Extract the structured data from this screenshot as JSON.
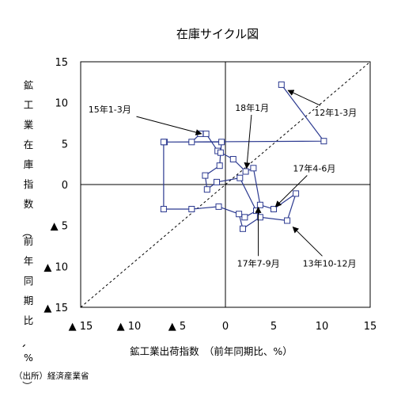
{
  "chart_data": {
    "type": "scatter",
    "title": "在庫サイクル図",
    "xlabel": "鉱工業出荷指数　（前年同期比、%）",
    "ylabel": "鉱工業在庫指数（前年同期比、%）",
    "xlim": [
      -15,
      15
    ],
    "ylim": [
      -15,
      15
    ],
    "x_ticks": [
      {
        "value": -15,
        "label": "▲ 15"
      },
      {
        "value": -10,
        "label": "▲ 10"
      },
      {
        "value": -5,
        "label": "▲ 5"
      },
      {
        "value": 0,
        "label": "0"
      },
      {
        "value": 5,
        "label": "5"
      },
      {
        "value": 10,
        "label": "10"
      },
      {
        "value": 15,
        "label": "15"
      }
    ],
    "y_ticks": [
      {
        "value": 15,
        "label": "15"
      },
      {
        "value": 10,
        "label": "10"
      },
      {
        "value": 5,
        "label": "5"
      },
      {
        "value": 0,
        "label": "0"
      },
      {
        "value": -5,
        "label": "▲ 5"
      },
      {
        "value": -10,
        "label": "▲ 10"
      },
      {
        "value": -15,
        "label": "▲ 15"
      }
    ],
    "grid": false,
    "diagonal": "45-degree dashed reference line",
    "series": [
      {
        "marker": "hollow-square",
        "color": "#2b3990",
        "points": [
          {
            "x": 5.8,
            "y": 12.2
          },
          {
            "x": 10.2,
            "y": 5.3
          },
          {
            "x": -6.3,
            "y": 5.2
          },
          {
            "x": -3.5,
            "y": 5.2
          },
          {
            "x": -2.6,
            "y": 6.2
          },
          {
            "x": -2.0,
            "y": 6.2
          },
          {
            "x": -0.8,
            "y": 4.1
          },
          {
            "x": 0.8,
            "y": 3.1
          },
          {
            "x": 2.1,
            "y": 1.6
          },
          {
            "x": 2.9,
            "y": 2.0
          },
          {
            "x": 3.6,
            "y": -2.5
          },
          {
            "x": 5.0,
            "y": -3.0
          },
          {
            "x": 7.3,
            "y": -1.1
          },
          {
            "x": 6.4,
            "y": -4.4
          },
          {
            "x": 3.6,
            "y": -4.0
          },
          {
            "x": 1.8,
            "y": -5.4
          },
          {
            "x": 1.4,
            "y": -3.6
          },
          {
            "x": -0.7,
            "y": -2.7
          },
          {
            "x": -3.5,
            "y": -3.0
          },
          {
            "x": -6.4,
            "y": -3.0
          },
          {
            "x": -6.4,
            "y": 5.2
          },
          {
            "x": -0.4,
            "y": 5.2
          },
          {
            "x": -0.5,
            "y": 3.9
          },
          {
            "x": -0.6,
            "y": 2.3
          },
          {
            "x": -2.1,
            "y": 1.1
          },
          {
            "x": -1.9,
            "y": -0.6
          },
          {
            "x": -0.9,
            "y": 0.3
          },
          {
            "x": 1.5,
            "y": 0.8
          },
          {
            "x": 3.2,
            "y": -3.2
          },
          {
            "x": 2.0,
            "y": -4.0
          }
        ]
      }
    ],
    "annotations": [
      {
        "text": "12年1-3月",
        "x": 9.2,
        "y": 8.4,
        "target": {
          "x": 6.5,
          "y": 11.5
        }
      },
      {
        "text": "15年1-3月",
        "x": -14.2,
        "y": 8.8,
        "target": {
          "x": -2.5,
          "y": 6.2
        }
      },
      {
        "text": "18年1月",
        "x": 1.0,
        "y": 9.0,
        "target": {
          "x": 2.2,
          "y": 2.0
        }
      },
      {
        "text": "17年4-6月",
        "x": 7.0,
        "y": 1.6,
        "target": {
          "x": 5.2,
          "y": -2.7
        }
      },
      {
        "text": "17年7-9月",
        "x": 1.2,
        "y": -10.0,
        "target": {
          "x": 3.4,
          "y": -2.8
        }
      },
      {
        "text": "13年10-12月",
        "x": 8.0,
        "y": -10.0,
        "target": {
          "x": 7.0,
          "y": -5.2
        }
      }
    ]
  },
  "source_note": "（出所）経済産業省"
}
